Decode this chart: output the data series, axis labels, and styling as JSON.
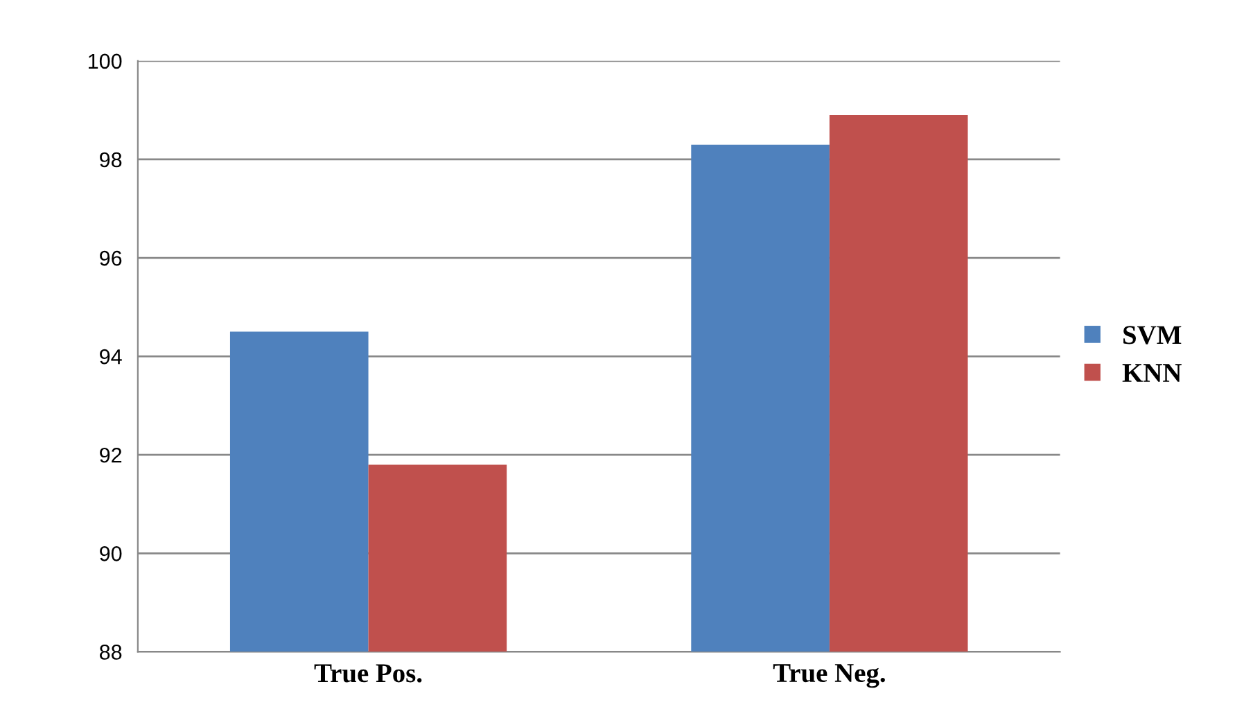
{
  "chart_data": {
    "type": "bar",
    "categories": [
      "True Pos.",
      "True Neg."
    ],
    "series": [
      {
        "name": "SVM",
        "color": "#4f81bd",
        "values": [
          94.5,
          98.3
        ]
      },
      {
        "name": "KNN",
        "color": "#c0504d",
        "values": [
          91.8,
          98.9
        ]
      }
    ],
    "ylim": [
      88,
      100
    ],
    "yticks": [
      88,
      90,
      92,
      94,
      96,
      98,
      100
    ],
    "grid": "y",
    "legend": "right"
  }
}
